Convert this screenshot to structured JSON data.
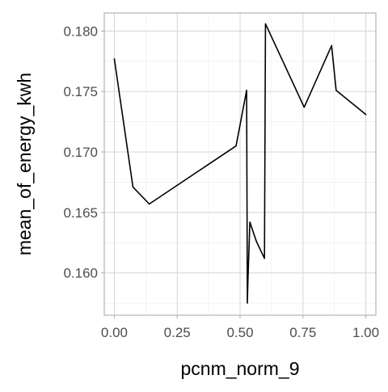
{
  "chart_data": {
    "type": "line",
    "title": "",
    "xlabel": "pcnm_norm_9",
    "ylabel": "mean_of_energy_kwh",
    "xlim": [
      -0.04,
      1.04
    ],
    "ylim": [
      0.1565,
      0.1815
    ],
    "x_ticks": [
      0.0,
      0.25,
      0.5,
      0.75,
      1.0
    ],
    "x_tick_labels": [
      "0.00",
      "0.25",
      "0.50",
      "0.75",
      "1.00"
    ],
    "y_ticks": [
      0.16,
      0.165,
      0.17,
      0.175,
      0.18
    ],
    "y_tick_labels": [
      "0.160",
      "0.165",
      "0.170",
      "0.175",
      "0.180"
    ],
    "grid": true,
    "series": [
      {
        "x": [
          0.0,
          0.074,
          0.139,
          0.484,
          0.526,
          0.529,
          0.531,
          0.539,
          0.565,
          0.597,
          0.601,
          0.755,
          0.864,
          0.882,
          1.0
        ],
        "y": [
          0.1777,
          0.1671,
          0.1657,
          0.1705,
          0.1751,
          0.1575,
          0.1592,
          0.1642,
          0.1626,
          0.1612,
          0.1806,
          0.1737,
          0.1788,
          0.1751,
          0.1731
        ]
      }
    ]
  },
  "colors": {
    "background": "#ffffff",
    "panel_border": "#b3b3b3",
    "grid_major": "#d9d9d9",
    "grid_minor": "#efefef",
    "line": "#000000",
    "tick_label": "#4d4d4d",
    "axis_title": "#000000"
  }
}
